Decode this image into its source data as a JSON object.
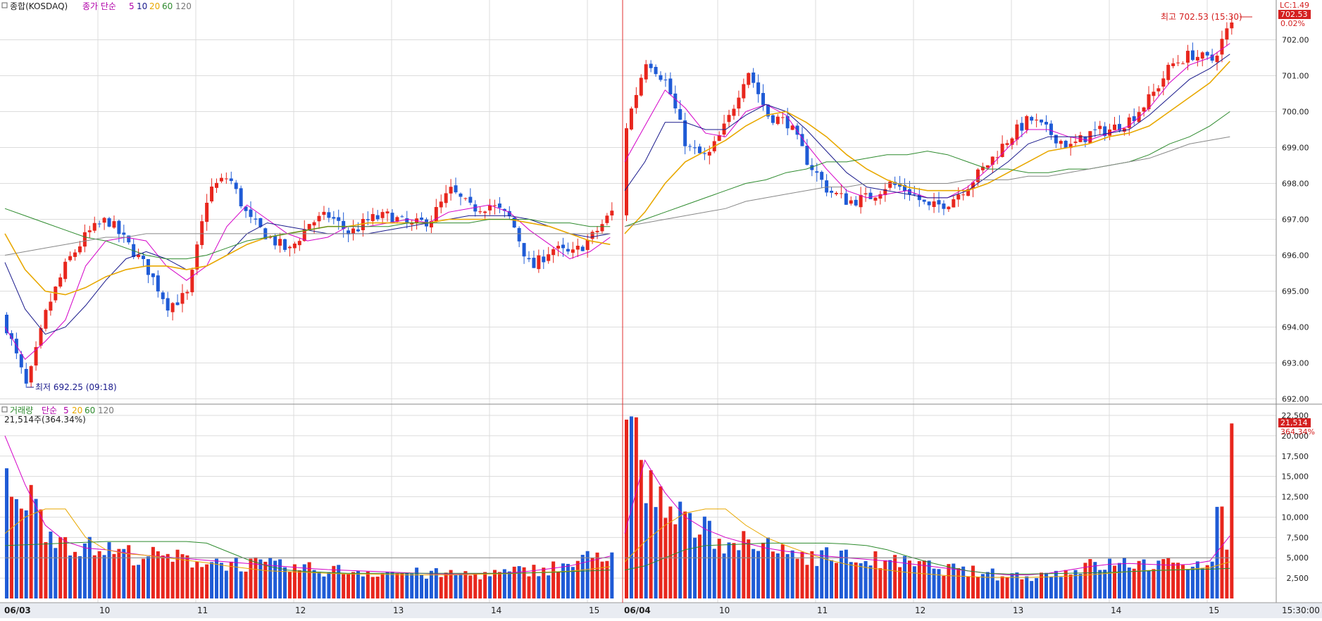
{
  "price_panel": {
    "title": "종합(KOSDAQ)",
    "ma_label": "종가 단순",
    "ma_periods": [
      "5",
      "10",
      "20",
      "60",
      "120"
    ],
    "lc_label": "LC:1.49",
    "current_price": "702.53",
    "change_pct": "0.02%",
    "high_annotation": "최고 702.53 (15:30)",
    "low_annotation": "최저 692.25 (09:18)"
  },
  "volume_panel": {
    "title": "거래량",
    "ma_label": "단순",
    "ma_periods": [
      "5",
      "20",
      "60",
      "120"
    ],
    "volume_info": "21,514주(364.34%)",
    "current_volume": "21,514",
    "volume_pct": "364.34%"
  },
  "x_axis_labels": [
    "06/03",
    "10",
    "11",
    "12",
    "13",
    "14",
    "15",
    "06/04",
    "10",
    "11",
    "12",
    "13",
    "14",
    "15"
  ],
  "time_readout": "15:30:00",
  "chart_data": [
    {
      "type": "candlestick",
      "title": "종합(KOSDAQ)",
      "y_ticks": [
        "692.00",
        "693.00",
        "694.00",
        "695.00",
        "696.00",
        "697.00",
        "698.00",
        "699.00",
        "700.00",
        "701.00",
        "702.00"
      ],
      "ylim": [
        691.95,
        702.95
      ],
      "grid": true,
      "sessions": [
        {
          "date": "06/03",
          "x_labels": [
            "06/03",
            "10",
            "11",
            "12",
            "13",
            "14",
            "15"
          ],
          "close_path": [
            694.0,
            692.3,
            694.5,
            695.8,
            696.6,
            697.0,
            696.3,
            695.6,
            694.6,
            694.9,
            697.8,
            698.2,
            697.0,
            696.5,
            696.1,
            696.9,
            697.1,
            696.6,
            697.0,
            697.1,
            696.8,
            697.0,
            697.8,
            697.3,
            697.4,
            697.0,
            695.6,
            696.2,
            696.0,
            696.5,
            697.2
          ],
          "high": 698.3,
          "low": 692.25,
          "ma_lines": [
            {
              "period": "5",
              "color": "#d400c8",
              "values": [
                694.0,
                693.1,
                693.6,
                694.2,
                695.7,
                696.4,
                696.5,
                696.4,
                695.7,
                695.3,
                695.7,
                696.8,
                697.4,
                697.0,
                696.6,
                696.4,
                696.5,
                696.8,
                696.8,
                696.9,
                697.0,
                696.9,
                697.2,
                697.3,
                697.4,
                697.2,
                696.7,
                696.3,
                695.9,
                696.1,
                696.5
              ]
            },
            {
              "period": "10",
              "color": "#1a1a8c",
              "values": [
                695.8,
                694.5,
                693.8,
                694.0,
                694.6,
                695.3,
                695.9,
                696.1,
                695.9,
                695.6,
                695.7,
                696.0,
                696.6,
                696.9,
                696.8,
                696.7,
                696.6,
                696.6,
                696.6,
                696.7,
                696.8,
                696.9,
                697.0,
                697.1,
                697.1,
                697.1,
                697.0,
                696.8,
                696.6,
                696.5,
                696.6
              ]
            },
            {
              "period": "20",
              "color": "#e8a800",
              "values": [
                696.6,
                695.6,
                695.0,
                694.9,
                695.1,
                695.4,
                695.6,
                695.7,
                695.7,
                695.6,
                695.7,
                696.0,
                696.3,
                696.5,
                696.6,
                696.7,
                696.8,
                696.8,
                696.9,
                696.9,
                696.9,
                696.9,
                697.0,
                697.0,
                697.0,
                697.0,
                696.9,
                696.8,
                696.6,
                696.4,
                696.3
              ]
            },
            {
              "period": "60",
              "color": "#2e8b2e",
              "values": [
                697.3,
                697.1,
                696.9,
                696.7,
                696.5,
                696.4,
                696.2,
                696.0,
                695.9,
                695.9,
                696.0,
                696.2,
                696.4,
                696.5,
                696.6,
                696.7,
                696.8,
                696.8,
                696.8,
                696.8,
                696.9,
                696.9,
                696.9,
                696.9,
                697.0,
                697.0,
                697.0,
                696.9,
                696.9,
                696.8,
                696.8
              ]
            },
            {
              "period": "120",
              "color": "#888888",
              "values": [
                696.0,
                696.1,
                696.2,
                696.3,
                696.4,
                696.5,
                696.5,
                696.6,
                696.6,
                696.6,
                696.6,
                696.6,
                696.6,
                696.6,
                696.6,
                696.6,
                696.6,
                696.6,
                696.6,
                696.6,
                696.6,
                696.6,
                696.6,
                696.6,
                696.6,
                696.6,
                696.6,
                696.6,
                696.6,
                696.6,
                696.6
              ]
            }
          ]
        },
        {
          "date": "06/04",
          "x_labels": [
            "06/04",
            "10",
            "11",
            "12",
            "13",
            "14",
            "15"
          ],
          "close_path": [
            699.6,
            701.5,
            700.8,
            699.0,
            698.7,
            699.7,
            701.2,
            699.9,
            699.7,
            698.6,
            697.8,
            697.5,
            697.6,
            698.0,
            697.8,
            697.3,
            697.5,
            698.0,
            698.6,
            699.3,
            699.8,
            699.4,
            699.0,
            699.4,
            699.5,
            699.8,
            700.4,
            701.3,
            701.6,
            701.4,
            702.5
          ],
          "high": 702.53,
          "low": 697.2,
          "ma_lines": [
            {
              "period": "5",
              "color": "#d400c8",
              "values": [
                698.6,
                699.6,
                700.6,
                700.1,
                699.4,
                699.3,
                700.0,
                700.2,
                699.9,
                699.1,
                698.4,
                697.8,
                697.6,
                697.7,
                697.8,
                697.6,
                697.6,
                697.9,
                698.4,
                699.0,
                699.5,
                699.5,
                699.3,
                699.2,
                699.4,
                699.6,
                700.1,
                700.8,
                701.3,
                701.5,
                701.9
              ]
            },
            {
              "period": "10",
              "color": "#1a1a8c",
              "values": [
                697.8,
                698.6,
                699.7,
                699.7,
                699.5,
                699.5,
                699.9,
                700.2,
                700.0,
                699.5,
                698.9,
                698.3,
                697.9,
                697.8,
                697.7,
                697.6,
                697.6,
                697.8,
                698.2,
                698.6,
                699.1,
                699.3,
                699.3,
                699.3,
                699.4,
                699.5,
                699.9,
                700.4,
                700.9,
                701.2,
                701.6
              ]
            },
            {
              "period": "20",
              "color": "#e8a800",
              "values": [
                696.6,
                697.2,
                698.0,
                698.6,
                698.9,
                699.2,
                699.6,
                699.9,
                700.0,
                699.7,
                699.3,
                698.8,
                698.4,
                698.1,
                697.9,
                697.8,
                697.8,
                697.8,
                698.0,
                698.3,
                698.6,
                698.9,
                699.0,
                699.1,
                699.3,
                699.4,
                699.6,
                700.0,
                700.4,
                700.8,
                701.4
              ]
            },
            {
              "period": "60",
              "color": "#2e8b2e",
              "values": [
                696.8,
                697.0,
                697.2,
                697.4,
                697.6,
                697.8,
                698.0,
                698.1,
                698.3,
                698.4,
                698.6,
                698.6,
                698.7,
                698.8,
                698.8,
                698.9,
                698.8,
                698.6,
                698.4,
                698.4,
                698.3,
                698.3,
                698.4,
                698.4,
                698.5,
                698.6,
                698.8,
                699.1,
                699.3,
                699.6,
                700.0
              ]
            },
            {
              "period": "120",
              "color": "#888888",
              "values": [
                696.8,
                696.9,
                697.0,
                697.1,
                697.2,
                697.3,
                697.5,
                697.6,
                697.7,
                697.8,
                697.9,
                697.9,
                698.0,
                698.0,
                698.0,
                698.0,
                698.0,
                698.1,
                698.1,
                698.1,
                698.2,
                698.2,
                698.3,
                698.4,
                698.5,
                698.6,
                698.7,
                698.9,
                699.1,
                699.2,
                699.3
              ]
            }
          ]
        }
      ]
    },
    {
      "type": "bar",
      "title": "거래량",
      "y_ticks": [
        "2,500",
        "5,000",
        "7,500",
        "10,000",
        "12,500",
        "15,000",
        "17,500",
        "20,000",
        "22,500"
      ],
      "ylim": [
        0,
        22500
      ],
      "grid": true,
      "sessions": [
        {
          "date": "06/03",
          "volume_path": [
            16000,
            12500,
            9000,
            7000,
            6200,
            6000,
            5500,
            5200,
            5000,
            4800,
            4600,
            4400,
            4200,
            4000,
            3800,
            3600,
            3500,
            3400,
            3300,
            3200,
            3100,
            3000,
            3000,
            3000,
            3000,
            3200,
            3500,
            3800,
            4200,
            5000,
            6000
          ],
          "ma_lines": [
            {
              "period": "5",
              "color": "#d400c8",
              "values": [
                20000,
                14000,
                9000,
                7000,
                6200,
                6000,
                5600,
                5300,
                5100,
                4900,
                4700,
                4500,
                4300,
                4100,
                3900,
                3700,
                3550,
                3450,
                3350,
                3250,
                3150,
                3050,
                3000,
                3000,
                3050,
                3150,
                3350,
                3650,
                4000,
                4600,
                5200
              ]
            },
            {
              "period": "20",
              "color": "#e8a800",
              "values": [
                8000,
                10000,
                11000,
                11000,
                7500,
                6000,
                5500,
                5300,
                5000,
                4700,
                4400,
                4000,
                3700,
                3400,
                3300,
                3200,
                3100,
                3000,
                3000,
                2950,
                2900,
                2900,
                2900,
                2950,
                3000,
                3050,
                3150,
                3250,
                3350,
                3600,
                3900
              ]
            },
            {
              "period": "60",
              "color": "#2e8b2e",
              "values": [
                6500,
                6600,
                6700,
                6800,
                6900,
                7000,
                7000,
                7000,
                7000,
                7000,
                6800,
                5800,
                4800,
                4000,
                3500,
                3300,
                3200,
                3100,
                3100,
                3100,
                3100,
                3100,
                3100,
                3100,
                3100,
                3100,
                3150,
                3200,
                3300,
                3400,
                3500
              ]
            },
            {
              "period": "120",
              "color": "#888888",
              "values": [
                5000,
                5000,
                5000,
                5000,
                5000,
                5000,
                5000,
                5000,
                5000,
                5000,
                5000,
                5000,
                5000,
                5000,
                5000,
                5000,
                5000,
                5000,
                5000,
                5000,
                5000,
                5000,
                5000,
                5000,
                5000,
                5000,
                5000,
                5000,
                5000,
                5000,
                5000
              ]
            }
          ]
        },
        {
          "date": "06/04",
          "volume_path": [
            22500,
            14000,
            11000,
            9000,
            8200,
            7200,
            6600,
            6000,
            5700,
            5400,
            5200,
            5000,
            4800,
            4500,
            4200,
            3900,
            3600,
            3300,
            3000,
            2800,
            2800,
            3000,
            3500,
            4000,
            4200,
            4300,
            4200,
            4000,
            4300,
            5000,
            21514
          ],
          "ma_lines": [
            {
              "period": "5",
              "color": "#d400c8",
              "values": [
                8000,
                17000,
                13000,
                10000,
                8500,
                7500,
                6800,
                6200,
                5800,
                5500,
                5200,
                5000,
                4800,
                4600,
                4300,
                4000,
                3700,
                3400,
                3100,
                2900,
                2900,
                3100,
                3500,
                3900,
                4200,
                4300,
                4200,
                4100,
                4200,
                4600,
                7700
              ]
            },
            {
              "period": "20",
              "color": "#e8a800",
              "values": [
                4500,
                7000,
                9000,
                10500,
                11000,
                11000,
                9000,
                7500,
                6500,
                5600,
                4800,
                4200,
                3800,
                3500,
                3200,
                3000,
                2800,
                2700,
                2600,
                2600,
                2600,
                2650,
                2750,
                2900,
                3100,
                3300,
                3450,
                3500,
                3600,
                3800,
                4500
              ]
            },
            {
              "period": "60",
              "color": "#2e8b2e",
              "values": [
                3500,
                4000,
                5000,
                6000,
                6500,
                6600,
                6700,
                6800,
                6800,
                6800,
                6800,
                6700,
                6500,
                6000,
                5200,
                4500,
                3900,
                3400,
                3100,
                3000,
                3000,
                3050,
                3100,
                3150,
                3200,
                3300,
                3400,
                3500,
                3550,
                3600,
                3700
              ]
            },
            {
              "period": "120",
              "color": "#888888",
              "values": [
                5000,
                5000,
                5000,
                5000,
                5000,
                5000,
                5000,
                5000,
                5000,
                5000,
                5000,
                5000,
                5000,
                5000,
                5000,
                5000,
                5000,
                5000,
                5000,
                5000,
                5000,
                5000,
                5000,
                5000,
                5000,
                5000,
                5000,
                5000,
                5000,
                5000,
                5000
              ]
            }
          ]
        }
      ]
    }
  ]
}
